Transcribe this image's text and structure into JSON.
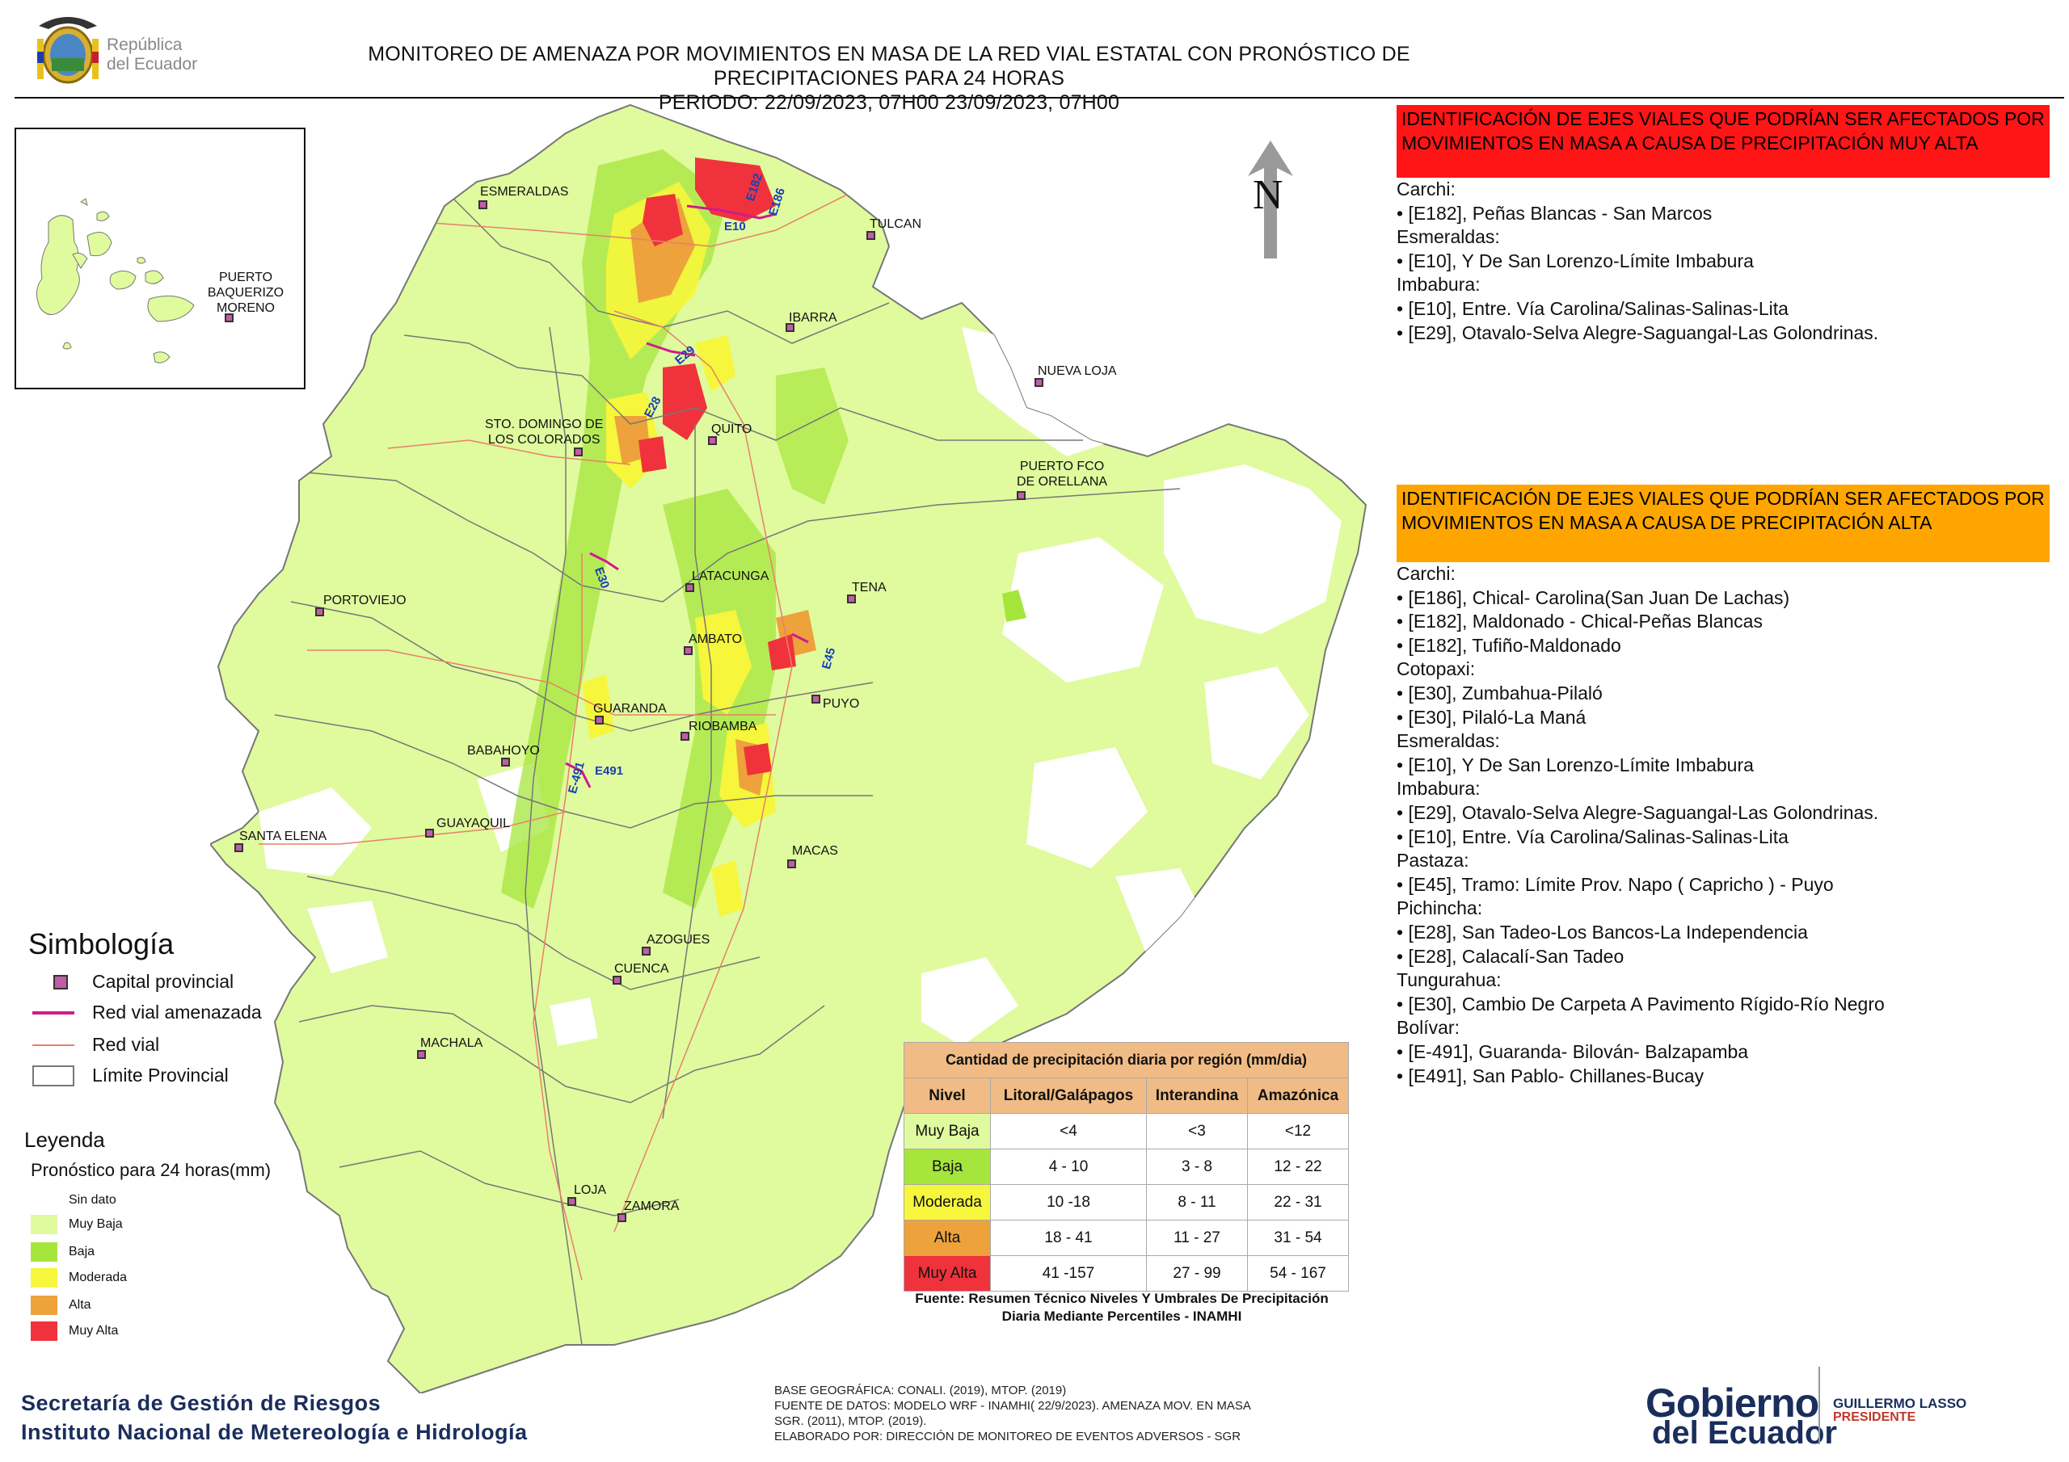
{
  "header": {
    "logo_text": "República\ndel Ecuador",
    "title_line1": "MONITOREO DE AMENAZA POR MOVIMIENTOS EN MASA DE LA RED VIAL  ESTATAL  CON PRONÓSTICO  DE  PRECIPITACIONES PARA 24 HORAS",
    "title_line2": "PERIODO: 22/09/2023, 07H00 23/09/2023, 07H00"
  },
  "north_label": "N",
  "colors": {
    "muy_baja": "#e0fa9e",
    "baja": "#a6e63c",
    "moderada": "#f6f63c",
    "alta": "#eda23b",
    "muy_alta": "#f0323c",
    "capital_marker": "#c25ca8",
    "threatened_road": "#d2198f",
    "road": "#e8806a",
    "panel_muy_alta": "#ff1515",
    "panel_alta": "#ffa500",
    "table_header": "#f0bb85"
  },
  "inset": {
    "city": "PUERTO\nBAQUERIZO\nMORENO"
  },
  "cities": [
    "ESMERALDAS",
    "TULCAN",
    "IBARRA",
    "NUEVA LOJA",
    "STO. DOMINGO DE\nLOS COLORADOS",
    "QUITO",
    "PUERTO FCO\nDE ORELLANA",
    "PORTOVIEJO",
    "LATACUNGA",
    "TENA",
    "AMBATO",
    "GUARANDA",
    "PUYO",
    "RIOBAMBA",
    "BABAHOYO",
    "GUAYAQUIL",
    "SANTA ELENA",
    "MACAS",
    "AZOGUES",
    "CUENCA",
    "MACHALA",
    "LOJA",
    "ZAMORA"
  ],
  "road_labels": [
    "E182",
    "E186",
    "E10",
    "E29",
    "E28",
    "E30",
    "E45",
    "E-491",
    "E491"
  ],
  "simbologia": {
    "title": "Simbología",
    "items": [
      "Capital provincial",
      "Red vial amenazada",
      "Red vial",
      "Límite Provincial"
    ]
  },
  "leyenda": {
    "title": "Leyenda",
    "subtitle": "Pronóstico para 24 horas(mm)",
    "items": [
      "Sin dato",
      "Muy Baja",
      "Baja",
      "Moderada",
      "Alta",
      "Muy Alta"
    ]
  },
  "panel_muy_alta": {
    "heading": "IDENTIFICACIÓN DE EJES VIALES QUE PODRÍAN SER AFECTADOS POR MOVIMIENTOS EN MASA A CAUSA DE PRECIPITACIÓN MUY ALTA",
    "lines": [
      "Carchi:",
      "• [E182], Peñas Blancas - San Marcos",
      "Esmeraldas:",
      "• [E10], Y De San Lorenzo-Límite Imbabura",
      "Imbabura:",
      "• [E10], Entre. Vía Carolina/Salinas-Salinas-Lita",
      "• [E29], Otavalo-Selva Alegre-Saguangal-Las Golondrinas."
    ]
  },
  "panel_alta": {
    "heading": "IDENTIFICACIÓN DE EJES VIALES QUE PODRÍAN SER AFECTADOS POR MOVIMIENTOS EN MASA A CAUSA DE PRECIPITACIÓN  ALTA",
    "lines": [
      "Carchi:",
      "• [E186], Chical- Carolina(San Juan De Lachas)",
      "• [E182], Maldonado - Chical-Peñas Blancas",
      "• [E182], Tufiño-Maldonado",
      "Cotopaxi:",
      "• [E30], Zumbahua-Pilaló",
      "• [E30], Pilaló-La Maná",
      "Esmeraldas:",
      "• [E10], Y De San Lorenzo-Límite Imbabura",
      "Imbabura:",
      "• [E29], Otavalo-Selva Alegre-Saguangal-Las Golondrinas.",
      "• [E10], Entre. Vía Carolina/Salinas-Salinas-Lita",
      "Pastaza:",
      "• [E45], Tramo: Límite Prov. Napo ( Capricho ) - Puyo",
      "Pichincha:",
      "• [E28], San Tadeo-Los Bancos-La Independencia",
      "• [E28], Calacalí-San Tadeo",
      "Tungurahua:",
      "• [E30], Cambio De Carpeta A Pavimento Rígido-Río Negro",
      "Bolívar:",
      "• [E-491], Guaranda- Bilován- Balzapamba",
      "• [E491], San Pablo- Chillanes-Bucay"
    ]
  },
  "precip_table": {
    "title": "Cantidad de precipitación diaria por región (mm/dia)",
    "headers": [
      "Nivel",
      "Litoral/Galápagos",
      "Interandina",
      "Amazónica"
    ],
    "rows": [
      {
        "nivel": "Muy Baja",
        "litoral": "<4",
        "interandina": "<3",
        "amazonica": "<12"
      },
      {
        "nivel": "Baja",
        "litoral": "4 - 10",
        "interandina": "3 - 8",
        "amazonica": "12 - 22"
      },
      {
        "nivel": "Moderada",
        "litoral": "10 -18",
        "interandina": "8 - 11",
        "amazonica": "22 - 31"
      },
      {
        "nivel": "Alta",
        "litoral": "18 - 41",
        "interandina": "11 - 27",
        "amazonica": "31 - 54"
      },
      {
        "nivel": "Muy Alta",
        "litoral": "41 -157",
        "interandina": "27 - 99",
        "amazonica": "54 - 167"
      }
    ],
    "source": "Fuente: Resumen Técnico Niveles Y Umbrales De Precipitación Diaria Mediante Percentiles - INAMHI"
  },
  "footer": {
    "org_line1": "Secretaría de Gestión de Riesgos",
    "org_line2": "Instituto Nacional de Metereología e Hidrología",
    "credits": [
      "BASE GEOGRÁFICA: CONALI. (2019), MTOP. (2019)",
      "FUENTE DE DATOS: MODELO WRF - INAMHI( 22/9/2023).  AMENAZA MOV. EN MASA",
      "SGR. (2011), MTOP. (2019).",
      "ELABORADO POR: DIRECCIÓN DE MONITOREO DE EVENTOS ADVERSOS - SGR"
    ],
    "gob_line1": "Gobierno",
    "gob_line2": "del Ecuador",
    "president_name": "GUILLERMO LASSO",
    "president_title": "PRESIDENTE"
  }
}
